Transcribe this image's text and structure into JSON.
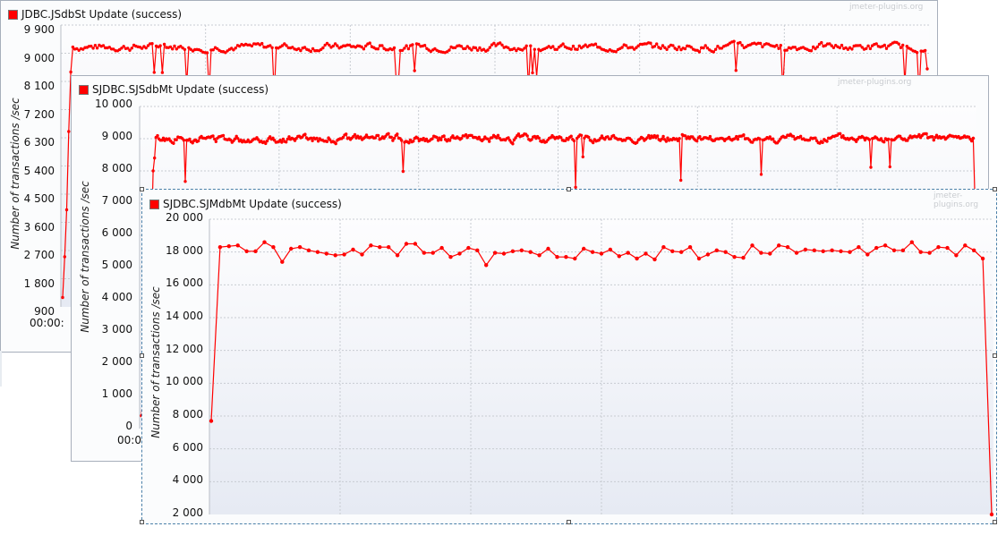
{
  "watermark": "jmeter-plugins.org",
  "ylabel": "Number of transactions /sec",
  "colors": {
    "series": "#ff0000",
    "grid": "#c8ccd2",
    "plot_bg_top": "#fdfdfe",
    "plot_bg_bottom": "#e6eaf3"
  },
  "chart_data": [
    {
      "type": "line",
      "legend": "JDBC.JSdbSt Update (success)",
      "ylabel": "Number of transactions /sec",
      "yticks": [
        "9 900",
        "9 000",
        "8 100",
        "7 200",
        "6 300",
        "5 400",
        "4 500",
        "3 600",
        "2 700",
        "1 800",
        "900"
      ],
      "ylim": [
        900,
        9900
      ],
      "xtick_label": "00:00:",
      "grid": true,
      "startup": [
        1200,
        2500,
        4000,
        6500,
        8400
      ],
      "steady_level": 9200,
      "steady_variation": 300,
      "n_points": 420,
      "end_value": 8500
    },
    {
      "type": "line",
      "legend": "SJDBC.SJSdbMt Update (success)",
      "ylabel": "Number of transactions /sec",
      "yticks": [
        "10 000",
        "9 000",
        "8 000",
        "7 000",
        "6 000",
        "5 000",
        "4 000",
        "3 000",
        "2 000",
        "1 000",
        "0"
      ],
      "ylim": [
        0,
        10000
      ],
      "xtick_label": "00:00",
      "grid": true,
      "startup": [
        400,
        1000,
        1400,
        2100,
        2500,
        3500,
        4200,
        6000,
        8000,
        8400
      ],
      "steady_level": 9000,
      "steady_variation": 300,
      "n_points": 560,
      "end_value": 7400
    },
    {
      "type": "line",
      "legend": "SJDBC.SJMdbMt Update (success)",
      "ylabel": "Number of transactions /sec",
      "yticks": [
        "20 000",
        "18 000",
        "16 000",
        "14 000",
        "12 000",
        "10 000",
        "8 000",
        "6 000",
        "4 000",
        "2 000"
      ],
      "ylim": [
        2000,
        20000
      ],
      "grid": true,
      "values": [
        7700,
        18300,
        18350,
        18400,
        18050,
        18050,
        18600,
        18300,
        17400,
        18200,
        18300,
        18100,
        18000,
        17900,
        17800,
        17850,
        18150,
        17850,
        18400,
        18300,
        18300,
        17800,
        18500,
        18500,
        17950,
        17950,
        18250,
        17700,
        17900,
        18250,
        18100,
        17200,
        17950,
        17900,
        18050,
        18100,
        18000,
        17800,
        18200,
        17700,
        17700,
        17600,
        18200,
        18000,
        17900,
        18150,
        17750,
        17950,
        17600,
        17900,
        17550,
        18300,
        18050,
        18000,
        18300,
        17600,
        17850,
        18100,
        18000,
        17700,
        17650,
        18400,
        17950,
        17900,
        18400,
        18300,
        17950,
        18150,
        18100,
        18050,
        18100,
        18050,
        18000,
        18300,
        17850,
        18250,
        18400,
        18100,
        18100,
        18600,
        18000,
        17950,
        18300,
        18250,
        17800,
        18400,
        18100,
        17600,
        1700
      ]
    }
  ]
}
